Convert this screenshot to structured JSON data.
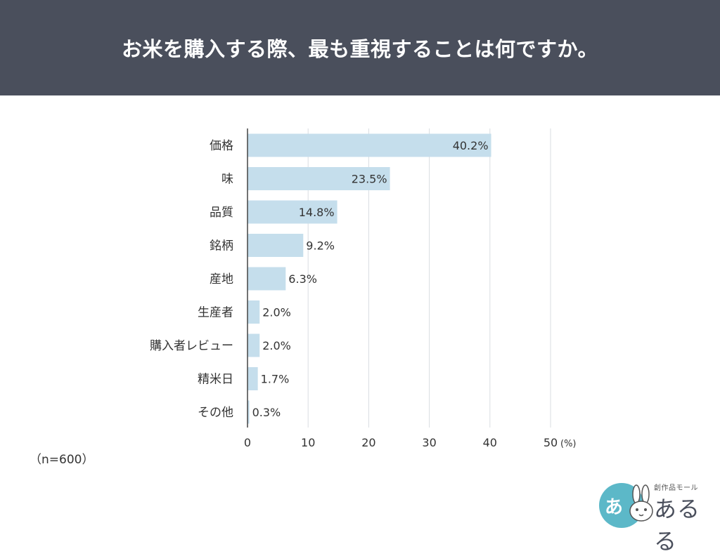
{
  "header": {
    "title": "お米を購入する際、最も重視することは何ですか。"
  },
  "note": "（n=600）",
  "logo": {
    "circle_text": "あ",
    "small_text": "創作品モール",
    "main_text": "あるる"
  },
  "colors": {
    "header_bg": "#4a4f5c",
    "bar": "#c5deec",
    "grid": "#d9dde2",
    "axis": "#444444",
    "text": "#333333"
  },
  "chart_data": {
    "type": "bar",
    "orientation": "horizontal",
    "title": "お米を購入する際、最も重視することは何ですか。",
    "xlabel": "",
    "ylabel": "",
    "unit_label": "(%)",
    "xlim": [
      0,
      50
    ],
    "xticks": [
      0,
      10,
      20,
      30,
      40,
      50
    ],
    "grid": true,
    "categories": [
      "価格",
      "味",
      "品質",
      "銘柄",
      "産地",
      "生産者",
      "購入者レビュー",
      "精米日",
      "その他"
    ],
    "values": [
      40.2,
      23.5,
      14.8,
      9.2,
      6.3,
      2.0,
      2.0,
      1.7,
      0.3
    ],
    "value_labels": [
      "40.2%",
      "23.5%",
      "14.8%",
      "9.2%",
      "6.3%",
      "2.0%",
      "2.0%",
      "1.7%",
      "0.3%"
    ]
  }
}
